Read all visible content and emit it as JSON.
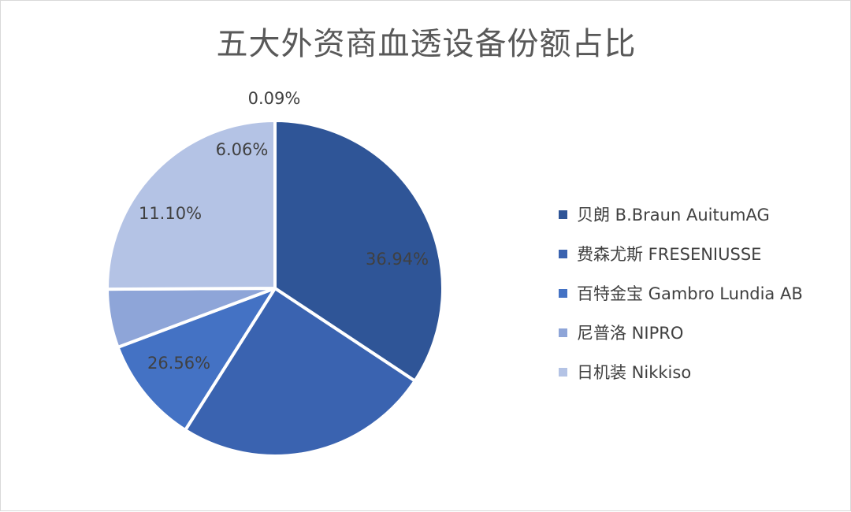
{
  "chart_data": {
    "type": "pie",
    "title": "五大外资商血透设备份额占比",
    "slices": [
      {
        "name": "贝朗 B.Braun AuitumAG",
        "value": 36.94,
        "label": "36.94%",
        "color": "#2f5597"
      },
      {
        "name": "费森尤斯 FRESENIUSSE",
        "value": 26.56,
        "label": "26.56%",
        "color": "#3a63b0"
      },
      {
        "name": "百特金宝 Gambro Lundia AB",
        "value": 11.1,
        "label": "11.10%",
        "color": "#4472c4"
      },
      {
        "name": "尼普洛 NIPRO",
        "value": 6.06,
        "label": "6.06%",
        "color": "#8ea5d8"
      },
      {
        "name": "日机装 Nikkiso",
        "value": 0.09,
        "label": "0.09%",
        "color": "#b4c3e5"
      }
    ],
    "legend_position": "right"
  }
}
